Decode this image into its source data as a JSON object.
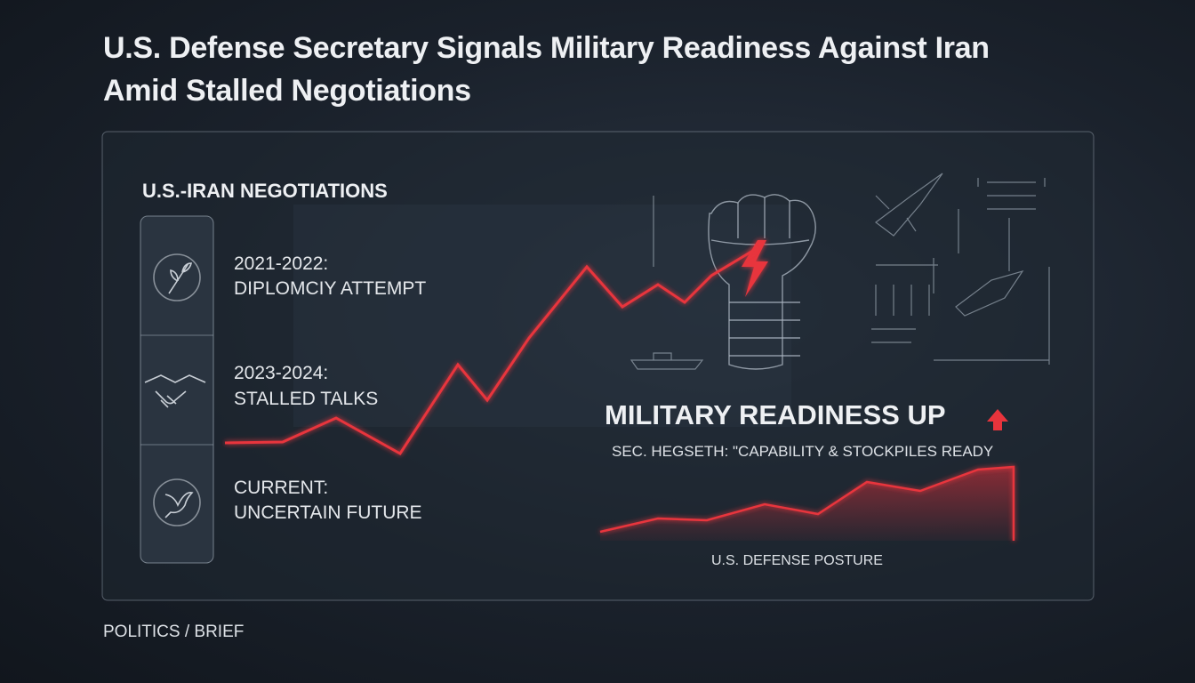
{
  "header": {
    "title": "U.S. Defense Secretary Signals Military Readiness Against Iran Amid Stalled Negotiations"
  },
  "timeline": {
    "heading": "U.S.-IRAN NEGOTIATIONS",
    "items": [
      {
        "period": "2021-2022:",
        "label": "DIPLOMCIY ATTEMPT"
      },
      {
        "period": "2023-2024:",
        "label": "STALLED TALKS"
      },
      {
        "period": "CURRENT:",
        "label": "UNCERTAIN FUTURE"
      }
    ]
  },
  "readiness": {
    "headline": "MILITARY READINESS UP",
    "quote": "SEC. HEGSETH: \"CAPABILITY & STOCKPILES READY",
    "caption": "U.S. DEFENSE POSTURE"
  },
  "footer": {
    "section": "POLITICS / BRIEF"
  }
}
